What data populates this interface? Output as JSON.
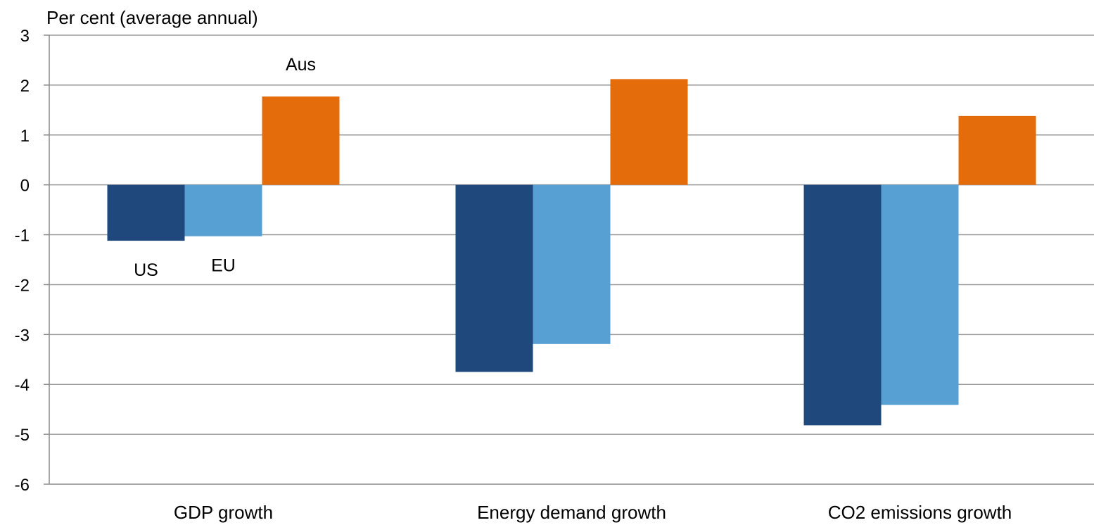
{
  "chart_data": {
    "type": "bar",
    "title": "",
    "ylabel": "Per cent (average annual)",
    "xlabel": "",
    "ylim": [
      -6,
      3
    ],
    "yticks": [
      3,
      2,
      1,
      0,
      -1,
      -2,
      -3,
      -4,
      -5,
      -6
    ],
    "categories": [
      "GDP growth",
      "Energy demand growth",
      "CO2 emissions growth"
    ],
    "series": [
      {
        "name": "US",
        "color": "#1f497d",
        "values": [
          -1.12,
          -3.75,
          -4.82
        ]
      },
      {
        "name": "EU",
        "color": "#56a0d3",
        "values": [
          -1.03,
          -3.19,
          -4.41
        ]
      },
      {
        "name": "Aus",
        "color": "#e46c0a",
        "values": [
          1.77,
          2.12,
          1.38
        ]
      }
    ],
    "grid": true,
    "legend": "inline labels on first category group"
  }
}
